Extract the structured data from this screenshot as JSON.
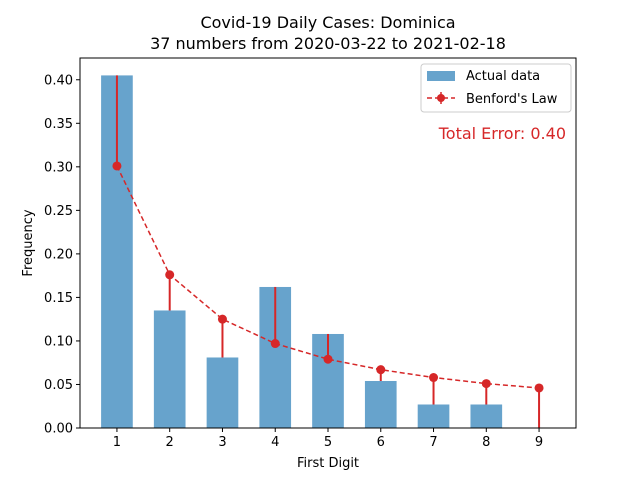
{
  "chart_data": {
    "type": "bar",
    "title": "Covid-19 Daily Cases: Dominica",
    "subtitle": "37 numbers from 2020-03-22 to 2021-02-18",
    "xlabel": "First Digit",
    "ylabel": "Frequency",
    "categories": [
      "1",
      "2",
      "3",
      "4",
      "5",
      "6",
      "7",
      "8",
      "9"
    ],
    "ylim": [
      0,
      0.425
    ],
    "yticks": [
      "0.00",
      "0.05",
      "0.10",
      "0.15",
      "0.20",
      "0.25",
      "0.30",
      "0.35",
      "0.40"
    ],
    "series": [
      {
        "name": "Actual data",
        "kind": "bar",
        "color": "#1f77b4",
        "values": [
          0.405,
          0.135,
          0.081,
          0.162,
          0.108,
          0.054,
          0.027,
          0.027,
          0.0
        ]
      },
      {
        "name": "Benford's Law",
        "kind": "line-errorbar",
        "color": "#d62728",
        "values": [
          0.301,
          0.176,
          0.125,
          0.097,
          0.079,
          0.067,
          0.058,
          0.051,
          0.046
        ]
      }
    ],
    "annotation": "Total Error: 0.40",
    "legend_position": "top-right",
    "grid": false
  }
}
